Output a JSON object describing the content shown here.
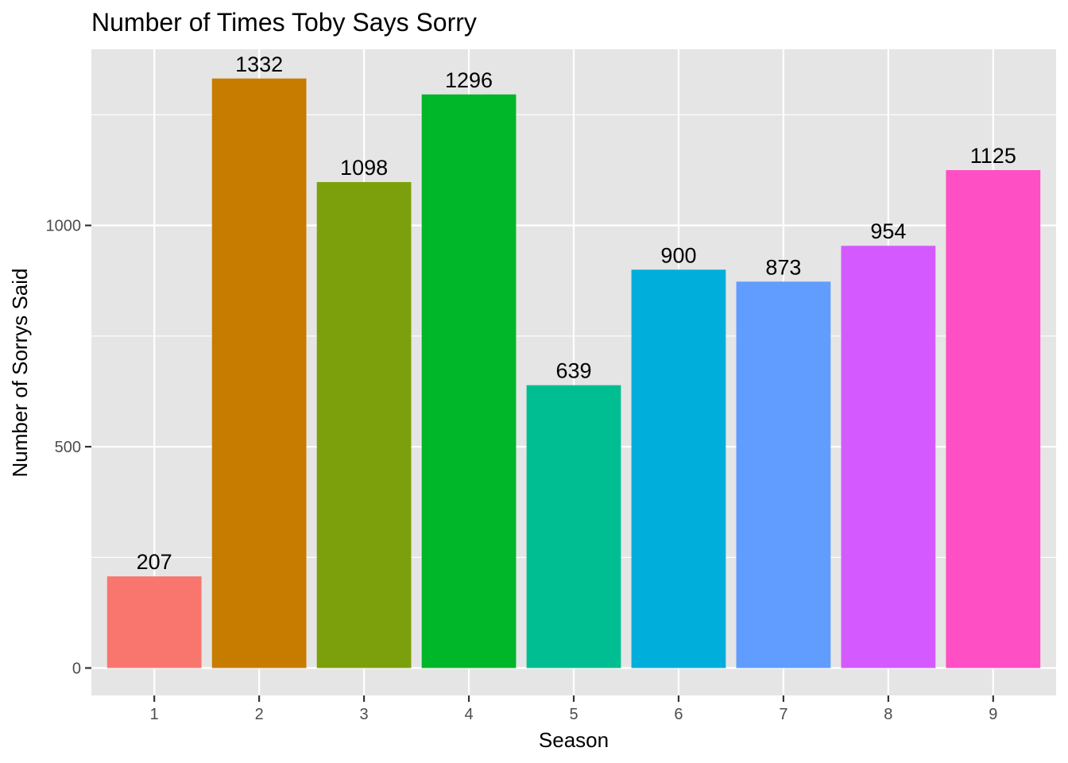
{
  "chart_data": {
    "type": "bar",
    "title": "Number of Times Toby Says Sorry",
    "xlabel": "Season",
    "ylabel": "Number of Sorrys Said",
    "categories": [
      "1",
      "2",
      "3",
      "4",
      "5",
      "6",
      "7",
      "8",
      "9"
    ],
    "values": [
      207,
      1332,
      1098,
      1296,
      639,
      900,
      873,
      954,
      1125
    ],
    "data_labels": [
      "207",
      "1332",
      "1098",
      "1296",
      "639",
      "900",
      "873",
      "954",
      "1125"
    ],
    "colors": [
      "#F8766D",
      "#C77C00",
      "#7CA00B",
      "#00B629",
      "#00BE92",
      "#00AEDB",
      "#619CFF",
      "#D45AFF",
      "#FF4FC4"
    ],
    "y_ticks": [
      0,
      500,
      1000
    ],
    "y_tick_labels": [
      "0",
      "500",
      "1000"
    ],
    "ylim": [
      -62,
      1398
    ],
    "grid": true,
    "panel_background": "#E5E5E5",
    "grid_color": "#FFFFFF",
    "legend": "none"
  }
}
